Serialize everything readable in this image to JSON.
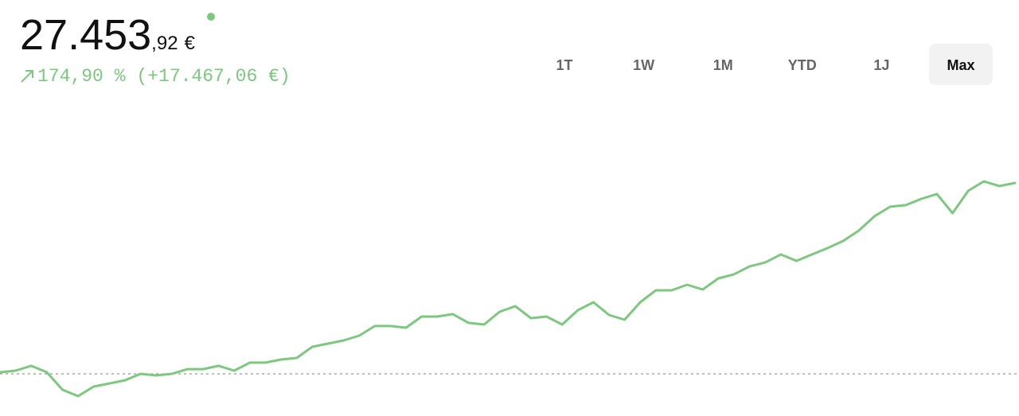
{
  "header": {
    "value_main": "27.453",
    "value_cents": ",92",
    "currency": "€",
    "change_percent": "174,90 %",
    "change_amount": "(+17.467,06 €)"
  },
  "range_buttons": [
    "1T",
    "1W",
    "1M",
    "YTD",
    "1J",
    "Max"
  ],
  "active_range": 5,
  "chart_data": {
    "type": "line",
    "color": "#7dc87f",
    "values": [
      10130,
      10280,
      10720,
      10130,
      8530,
      7950,
      8820,
      9110,
      9400,
      9990,
      9840,
      9990,
      10420,
      10420,
      10720,
      10280,
      11010,
      11010,
      11300,
      11440,
      12460,
      12750,
      13040,
      13480,
      14360,
      14360,
      14210,
      15230,
      15230,
      15450,
      14650,
      14500,
      15670,
      16180,
      15080,
      15230,
      14500,
      15810,
      16540,
      15370,
      14940,
      16540,
      17630,
      17630,
      18140,
      17700,
      18720,
      19090,
      19820,
      20180,
      20910,
      20320,
      20910,
      21490,
      22150,
      23090,
      24400,
      25280,
      25420,
      26000,
      26440,
      24690,
      26730,
      27600,
      27170,
      27450
    ],
    "ylim": [
      6130,
      34730
    ],
    "baseline": 9986.86
  }
}
